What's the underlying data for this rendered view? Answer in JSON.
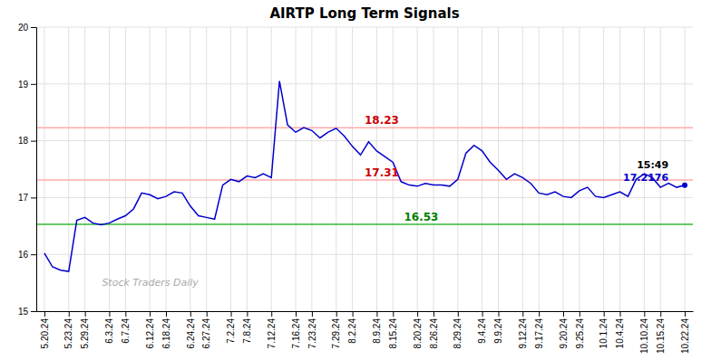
{
  "chart_data": {
    "type": "line",
    "title": "AIRTP Long Term Signals",
    "categories": [
      "5.20.24",
      null,
      null,
      "5.23.24",
      null,
      "5.29.24",
      null,
      null,
      "6.3.24",
      null,
      "6.7.24",
      null,
      null,
      "6.12.24",
      null,
      "6.18.24",
      null,
      null,
      "6.24.24",
      null,
      "6.27.24",
      null,
      null,
      "7.2.24",
      null,
      "7.8.24",
      null,
      null,
      "7.12.24",
      null,
      null,
      "7.16.24",
      null,
      "7.23.24",
      null,
      null,
      "7.29.24",
      null,
      "8.2.24",
      null,
      null,
      "8.9.24",
      null,
      "8.15.24",
      null,
      null,
      "8.20.24",
      null,
      "8.26.24",
      null,
      null,
      "8.29.24",
      null,
      null,
      "9.4.24",
      null,
      "9.9.24",
      null,
      null,
      "9.12.24",
      null,
      "9.17.24",
      null,
      null,
      "9.20.24",
      null,
      "9.25.24",
      null,
      null,
      "10.1.24",
      null,
      "10.4.24",
      null,
      null,
      "10.10.24",
      null,
      "10.15.24",
      null,
      null,
      "10.22.24"
    ],
    "values": [
      16.02,
      15.78,
      15.72,
      15.7,
      16.6,
      16.65,
      16.55,
      16.52,
      16.55,
      16.62,
      16.68,
      16.8,
      17.08,
      17.05,
      16.98,
      17.02,
      17.1,
      17.08,
      16.85,
      16.68,
      16.65,
      16.62,
      17.22,
      17.32,
      17.28,
      17.38,
      17.35,
      17.42,
      17.35,
      19.05,
      18.28,
      18.15,
      18.23,
      18.18,
      18.05,
      18.15,
      18.22,
      18.08,
      17.9,
      17.75,
      17.98,
      17.82,
      17.72,
      17.62,
      17.28,
      17.22,
      17.2,
      17.25,
      17.22,
      17.22,
      17.2,
      17.32,
      17.78,
      17.92,
      17.82,
      17.62,
      17.48,
      17.32,
      17.42,
      17.35,
      17.25,
      17.08,
      17.05,
      17.1,
      17.02,
      17.0,
      17.12,
      17.18,
      17.02,
      17.0,
      17.05,
      17.1,
      17.02,
      17.32,
      17.42,
      17.35,
      17.18,
      17.25,
      17.18,
      17.2176
    ],
    "color": "#0000cc",
    "ylim": [
      15,
      20
    ],
    "yticks": [
      15,
      16,
      17,
      18,
      19,
      20
    ],
    "grid": true,
    "hlines": [
      {
        "value": 16.53,
        "color": "#33bb33",
        "label": "16.53",
        "label_color": "#008000"
      },
      {
        "value": 17.31,
        "color": "#ffaaaa",
        "label": "17.31",
        "label_color": "#cc0000"
      },
      {
        "value": 18.23,
        "color": "#ffaaaa",
        "label": "18.23",
        "label_color": "#cc0000"
      }
    ],
    "annotations": [
      {
        "text": "15:49",
        "color": "#000000"
      },
      {
        "text": "17.2176",
        "color": "#0000cc"
      }
    ],
    "watermark": {
      "text": "Stock Traders Daily",
      "color": "#aaaaaa"
    }
  }
}
